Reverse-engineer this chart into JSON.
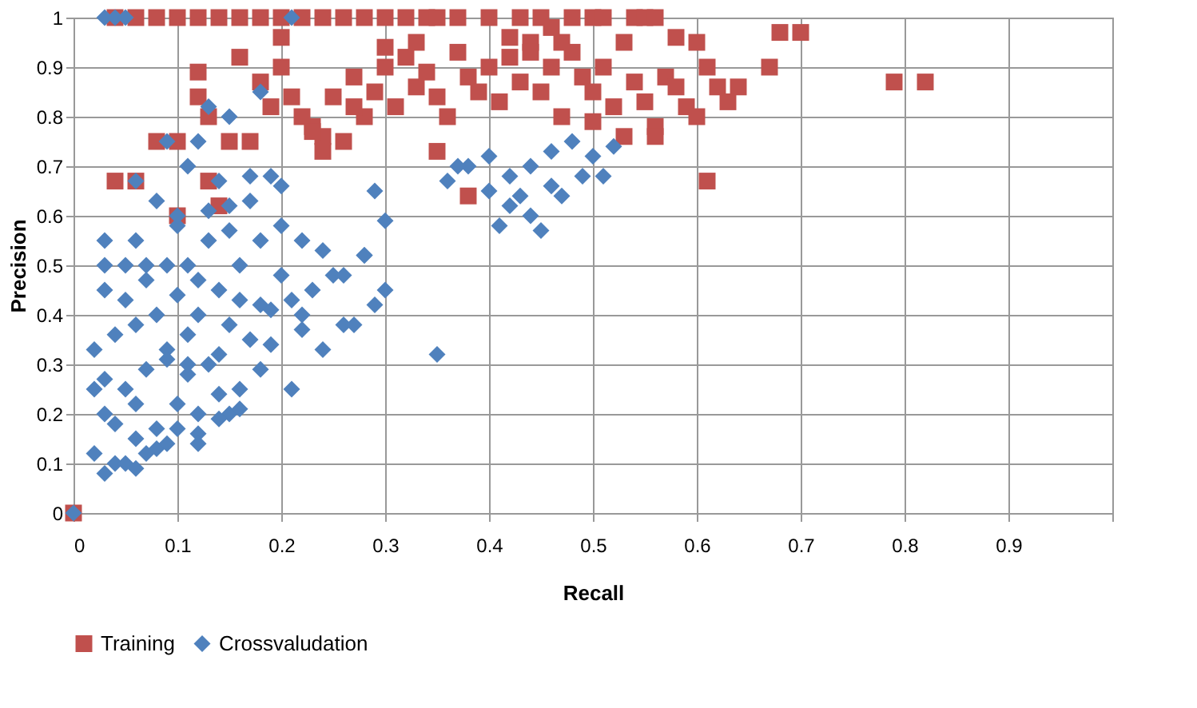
{
  "chart_data": {
    "type": "scatter",
    "xlabel": "Recall",
    "ylabel": "Precision",
    "xlim": [
      0,
      1
    ],
    "ylim": [
      0,
      1
    ],
    "xticks": [
      0,
      0.1,
      0.2,
      0.3,
      0.4,
      0.5,
      0.6,
      0.7,
      0.8,
      0.9,
      {
        "value": 1,
        "label": null
      }
    ],
    "yticks": [
      0,
      0.1,
      0.2,
      0.3,
      0.4,
      0.5,
      0.6,
      0.7,
      0.8,
      0.9,
      1
    ],
    "grid": true,
    "legend": "bottom",
    "series": [
      {
        "name": "Training",
        "color": "#c0504d",
        "marker": "square",
        "x": [
          0,
          0.04,
          0.06,
          0.08,
          0.1,
          0.12,
          0.14,
          0.16,
          0.18,
          0.2,
          0.22,
          0.24,
          0.26,
          0.28,
          0.3,
          0.32,
          0.34,
          0.35,
          0.37,
          0.4,
          0.43,
          0.45,
          0.48,
          0.5,
          0.51,
          0.54,
          0.55,
          0.56,
          0.04,
          0.06,
          0.13,
          0.08,
          0.1,
          0.15,
          0.17,
          0.1,
          0.14,
          0.12,
          0.12,
          0.13,
          0.16,
          0.2,
          0.18,
          0.19,
          0.21,
          0.23,
          0.24,
          0.25,
          0.27,
          0.28,
          0.29,
          0.3,
          0.31,
          0.32,
          0.33,
          0.34,
          0.35,
          0.36,
          0.38,
          0.39,
          0.4,
          0.41,
          0.42,
          0.43,
          0.44,
          0.45,
          0.46,
          0.47,
          0.48,
          0.49,
          0.5,
          0.51,
          0.52,
          0.53,
          0.54,
          0.55,
          0.56,
          0.57,
          0.58,
          0.59,
          0.6,
          0.61,
          0.62,
          0.63,
          0.64,
          0.67,
          0.68,
          0.7,
          0.79,
          0.82,
          0.61,
          0.38,
          0.35,
          0.24,
          0.26,
          0.22,
          0.3,
          0.42,
          0.46,
          0.5,
          0.56,
          0.6,
          0.2,
          0.23,
          0.27,
          0.33,
          0.37,
          0.44,
          0.47,
          0.53,
          0.58
        ],
        "values": [
          0,
          1,
          1,
          1,
          1,
          1,
          1,
          1,
          1,
          1,
          1,
          1,
          1,
          1,
          1,
          1,
          1,
          1,
          1,
          1,
          1,
          1,
          1,
          1,
          1,
          1,
          1,
          1,
          0.67,
          0.67,
          0.67,
          0.75,
          0.75,
          0.75,
          0.75,
          0.6,
          0.62,
          0.84,
          0.89,
          0.8,
          0.92,
          0.9,
          0.87,
          0.82,
          0.84,
          0.78,
          0.73,
          0.84,
          0.88,
          0.8,
          0.85,
          0.9,
          0.82,
          0.92,
          0.86,
          0.89,
          0.84,
          0.8,
          0.88,
          0.85,
          0.9,
          0.83,
          0.92,
          0.87,
          0.95,
          0.85,
          0.9,
          0.8,
          0.93,
          0.88,
          0.85,
          0.9,
          0.82,
          0.95,
          0.87,
          0.83,
          0.78,
          0.88,
          0.86,
          0.82,
          0.95,
          0.9,
          0.86,
          0.83,
          0.86,
          0.9,
          0.97,
          0.97,
          0.87,
          0.87,
          0.67,
          0.64,
          0.73,
          0.76,
          0.75,
          0.8,
          0.94,
          0.96,
          0.98,
          0.79,
          0.76,
          0.8,
          0.96,
          0.77,
          0.82,
          0.95,
          0.93,
          0.93,
          0.95,
          0.76,
          0.96
        ]
      },
      {
        "name": "Crossvaludation",
        "color": "#4f81bd",
        "marker": "diamond",
        "x": [
          0,
          0.03,
          0.04,
          0.05,
          0.21,
          0.13,
          0.15,
          0.12,
          0.09,
          0.11,
          0.14,
          0.17,
          0.06,
          0.08,
          0.1,
          0.13,
          0.03,
          0.05,
          0.07,
          0.09,
          0.11,
          0.12,
          0.16,
          0.18,
          0.2,
          0.03,
          0.05,
          0.07,
          0.08,
          0.1,
          0.12,
          0.14,
          0.16,
          0.18,
          0.2,
          0.22,
          0.24,
          0.02,
          0.04,
          0.06,
          0.09,
          0.11,
          0.13,
          0.15,
          0.17,
          0.19,
          0.21,
          0.23,
          0.25,
          0.28,
          0.03,
          0.05,
          0.07,
          0.09,
          0.11,
          0.14,
          0.16,
          0.19,
          0.22,
          0.26,
          0.29,
          0.03,
          0.04,
          0.06,
          0.08,
          0.1,
          0.12,
          0.15,
          0.18,
          0.21,
          0.24,
          0.27,
          0.3,
          0.02,
          0.04,
          0.06,
          0.08,
          0.1,
          0.12,
          0.14,
          0.16,
          0.03,
          0.05,
          0.07,
          0.09,
          0.12,
          0.02,
          0.06,
          0.11,
          0.14,
          0.22,
          0.35,
          0.29,
          0.3,
          0.26,
          0.28,
          0.36,
          0.38,
          0.4,
          0.4,
          0.42,
          0.42,
          0.44,
          0.44,
          0.46,
          0.46,
          0.48,
          0.49,
          0.5,
          0.51,
          0.37,
          0.41,
          0.43,
          0.45,
          0.47,
          0.52,
          0.13,
          0.17,
          0.19,
          0.2,
          0.15,
          0.18,
          0.06,
          0.1,
          0.03,
          0.15
        ],
        "values": [
          0,
          1,
          1,
          1,
          1,
          0.82,
          0.8,
          0.75,
          0.75,
          0.7,
          0.67,
          0.63,
          0.67,
          0.63,
          0.58,
          0.55,
          0.5,
          0.5,
          0.5,
          0.5,
          0.5,
          0.47,
          0.5,
          0.55,
          0.58,
          0.45,
          0.43,
          0.47,
          0.4,
          0.44,
          0.4,
          0.45,
          0.43,
          0.42,
          0.48,
          0.55,
          0.53,
          0.33,
          0.36,
          0.38,
          0.33,
          0.36,
          0.3,
          0.38,
          0.35,
          0.41,
          0.43,
          0.45,
          0.48,
          0.52,
          0.27,
          0.25,
          0.29,
          0.31,
          0.28,
          0.32,
          0.25,
          0.34,
          0.37,
          0.38,
          0.42,
          0.2,
          0.18,
          0.22,
          0.17,
          0.22,
          0.16,
          0.2,
          0.29,
          0.25,
          0.33,
          0.38,
          0.45,
          0.12,
          0.1,
          0.15,
          0.13,
          0.17,
          0.14,
          0.19,
          0.21,
          0.08,
          0.1,
          0.12,
          0.14,
          0.2,
          0.25,
          0.09,
          0.3,
          0.24,
          0.4,
          0.32,
          0.65,
          0.59,
          0.48,
          0.52,
          0.67,
          0.7,
          0.72,
          0.65,
          0.68,
          0.62,
          0.7,
          0.6,
          0.73,
          0.66,
          0.75,
          0.68,
          0.72,
          0.68,
          0.7,
          0.58,
          0.64,
          0.57,
          0.64,
          0.74,
          0.61,
          0.68,
          0.68,
          0.66,
          0.62,
          0.85,
          0.55,
          0.6,
          0.55,
          0.57
        ]
      }
    ]
  }
}
